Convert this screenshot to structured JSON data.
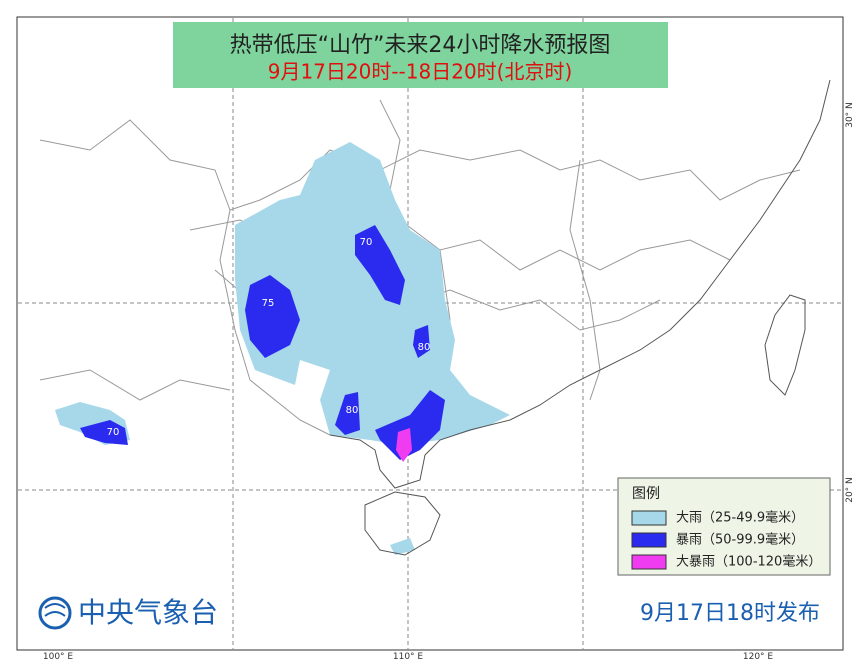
{
  "title": "热带低压“山竹”未来24小时降水预报图",
  "subtitle": "9月17日20时--18日20时(北京时)",
  "legend": {
    "title": "图例",
    "items": [
      {
        "label": "大雨（25-49.9毫米）",
        "color": "#a6d8ea"
      },
      {
        "label": "暴雨（50-99.9毫米）",
        "color": "#2b2bf0"
      },
      {
        "label": "大暴雨（100-120毫米）",
        "color": "#f03cf0"
      }
    ]
  },
  "contour_labels": [
    "70",
    "75",
    "80",
    "80",
    "70"
  ],
  "axes": {
    "lon_labels": [
      "100° E",
      "110° E",
      "120° E"
    ],
    "lat_labels": [
      "30° N",
      "20° N"
    ]
  },
  "footer": {
    "agency": "中央气象台",
    "issued": "9月17日18时发布"
  }
}
